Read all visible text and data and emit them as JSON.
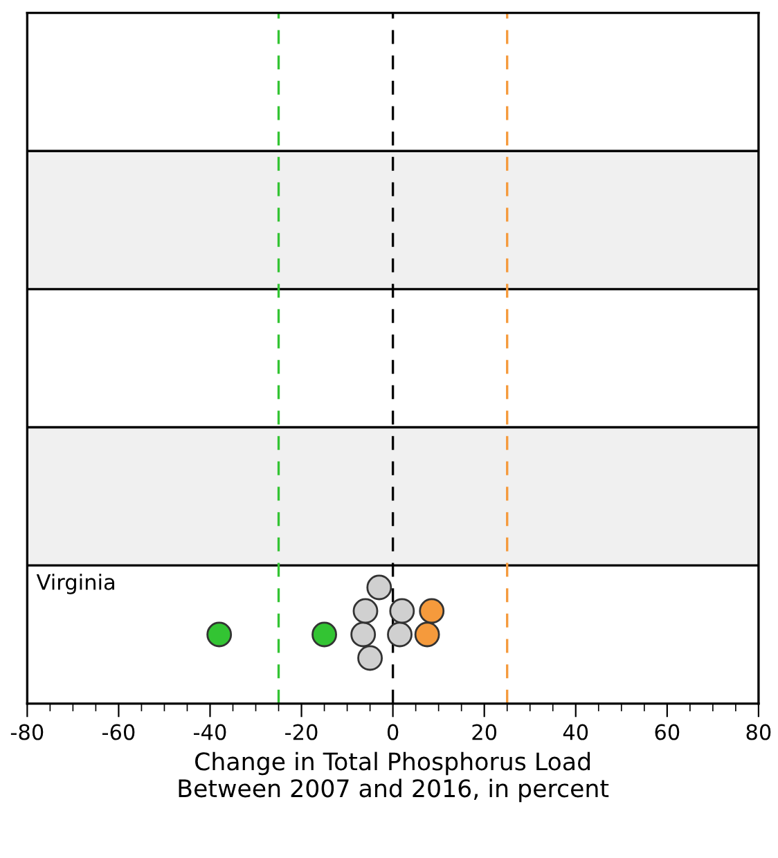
{
  "chart_data": {
    "type": "scatter",
    "orientation": "horizontal",
    "xlabel": "Change in Total Phosphorus Load\nBetween 2007 and 2016, in percent",
    "categories": [
      null,
      null,
      null,
      null,
      "Virginia"
    ],
    "xlim": [
      -80,
      80
    ],
    "xticks": [
      -80,
      -60,
      -40,
      -20,
      0,
      20,
      40,
      60,
      80
    ],
    "grid": false,
    "marker": "circle",
    "series": [
      {
        "color": "#33c433",
        "x": [
          "Virginia",
          "Virginia"
        ],
        "values": [
          -38,
          -15
        ]
      },
      {
        "color": "#d0d0d0",
        "x": [
          "Virginia",
          "Virginia",
          "Virginia",
          "Virginia",
          "Virginia",
          "Virginia"
        ],
        "values": [
          -6,
          -6.5,
          -3,
          -5,
          1.5,
          2
        ]
      },
      {
        "color": "#f59a3c",
        "x": [
          "Virginia",
          "Virginia"
        ],
        "values": [
          8.5,
          7.5
        ]
      }
    ],
    "ref_lines": [
      {
        "axis": "x",
        "value": -25,
        "color": "#33c433",
        "line_style": "dashed"
      },
      {
        "axis": "x",
        "value": 0,
        "color": "#000000",
        "line_style": "dashed"
      },
      {
        "axis": "x",
        "value": 25,
        "color": "#f59a3c",
        "line_style": "dashed"
      }
    ]
  }
}
